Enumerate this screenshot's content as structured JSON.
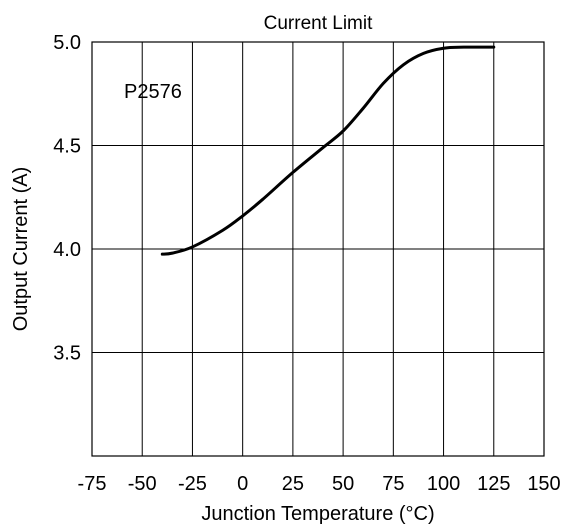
{
  "chart_data": {
    "type": "line",
    "title": "Current Limit",
    "xlabel": "Junction Temperature (°C)",
    "ylabel": "Output Current (A)",
    "xlim": [
      -75,
      150
    ],
    "ylim": [
      3.0,
      5.0
    ],
    "x_ticks": [
      -75,
      -50,
      -25,
      0,
      25,
      50,
      75,
      100,
      125,
      150
    ],
    "x_tick_labels": [
      "-75",
      "-50",
      "-25",
      "0",
      "25",
      "50",
      "75",
      "100",
      "125",
      "150"
    ],
    "y_ticks": [
      3.5,
      4.0,
      4.5,
      5.0
    ],
    "y_tick_labels": [
      "3.5",
      "4.0",
      "4.5",
      "5.0"
    ],
    "grid": true,
    "annotation": "P2576",
    "series": [
      {
        "x": [
          -40,
          -35,
          -25,
          -10,
          0,
          10,
          25,
          40,
          50,
          60,
          70,
          80,
          90,
          100,
          110,
          125
        ],
        "y": [
          3.975,
          3.98,
          4.01,
          4.09,
          4.16,
          4.24,
          4.37,
          4.49,
          4.57,
          4.68,
          4.8,
          4.89,
          4.945,
          4.97,
          4.975,
          4.975
        ],
        "color": "#000000"
      }
    ]
  }
}
